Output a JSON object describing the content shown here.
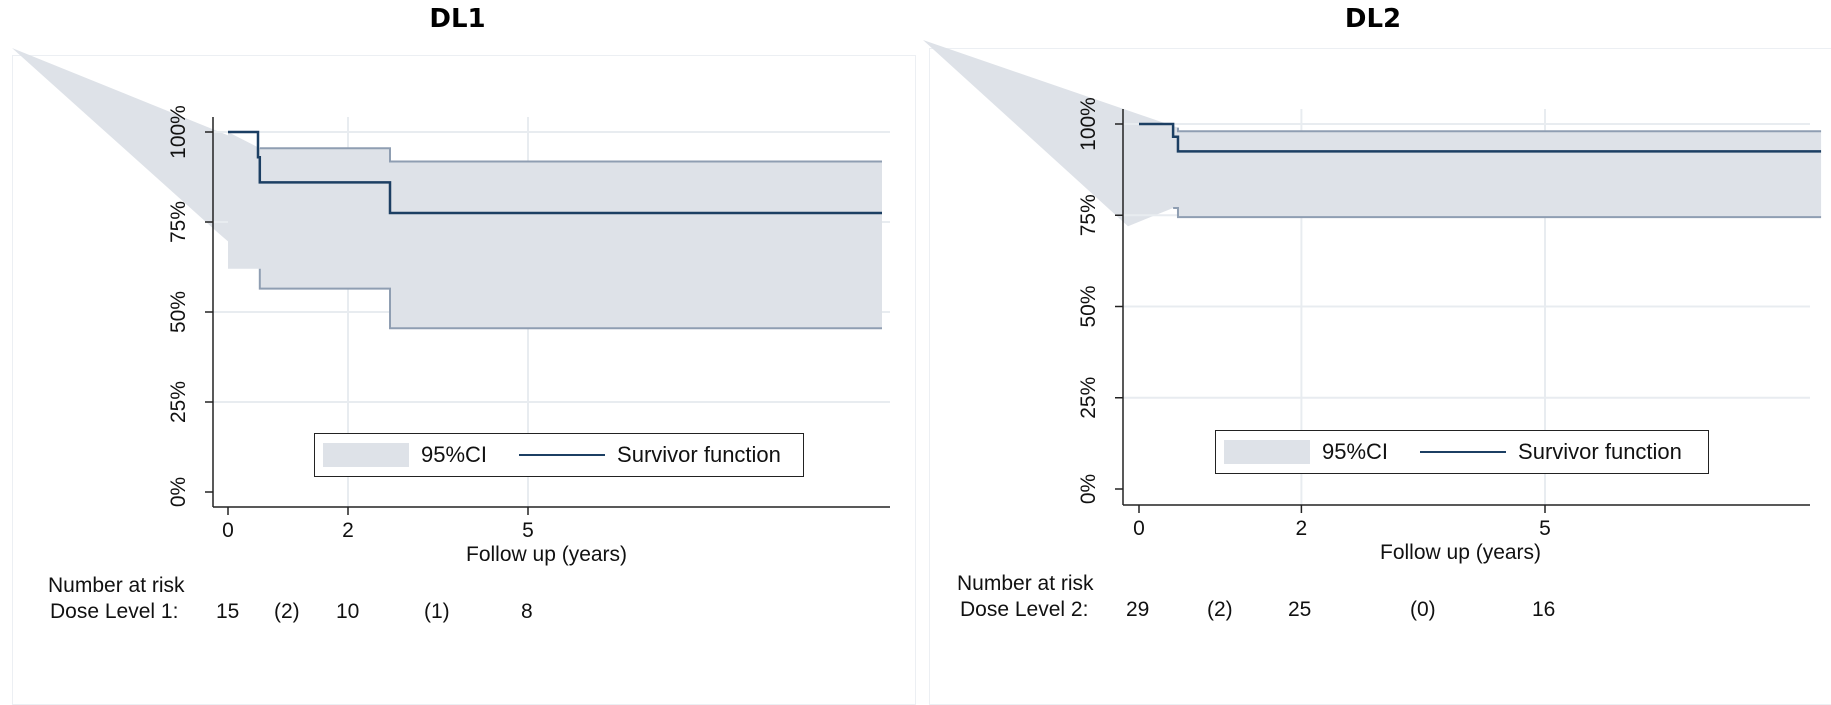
{
  "chart_data": [
    {
      "type": "line",
      "title": "DL1",
      "xlabel": "Follow up (years)",
      "ylabel": "",
      "x_ticks": [
        "0",
        "2",
        "5"
      ],
      "y_ticks": [
        "0%",
        "25%",
        "50%",
        "75%",
        "100%"
      ],
      "xlim": [
        0,
        10.9
      ],
      "ylim": [
        0,
        1
      ],
      "grid": true,
      "legend_position": "bottom-center",
      "legend": [
        "95%CI",
        "Survivor function"
      ],
      "colors": {
        "survivor": "#1c3f63",
        "ci_fill": "#dee2e8",
        "ci_edge": "#8f9eb2",
        "grid": "#e8ecf0"
      },
      "series": [
        {
          "name": "Survivor function",
          "x": [
            0,
            0.5,
            0.5,
            0.53,
            0.53,
            2.7,
            2.7,
            10.9
          ],
          "y": [
            1.0,
            1.0,
            0.93,
            0.93,
            0.86,
            0.86,
            0.775,
            0.775
          ]
        },
        {
          "name": "95%CI upper",
          "x": [
            0.53,
            2.7,
            2.7,
            10.9
          ],
          "y": [
            0.955,
            0.955,
            0.918,
            0.918
          ]
        },
        {
          "name": "95%CI lower",
          "x": [
            0.53,
            0.53,
            2.7,
            2.7,
            10.9
          ],
          "y": [
            0.62,
            0.565,
            0.565,
            0.455,
            0.455
          ]
        }
      ],
      "risk_table": {
        "heading": "Number at risk",
        "group_label": "Dose Level 1:",
        "values": [
          "15",
          "(2)",
          "10",
          "(1)",
          "8"
        ]
      }
    },
    {
      "type": "line",
      "title": "DL2",
      "xlabel": "Follow up (years)",
      "ylabel": "",
      "x_ticks": [
        "0",
        "2",
        "5"
      ],
      "y_ticks": [
        "0%",
        "25%",
        "50%",
        "75%",
        "100%"
      ],
      "xlim": [
        0,
        8.4
      ],
      "ylim": [
        0,
        1
      ],
      "grid": true,
      "legend_position": "bottom-center",
      "legend": [
        "95%CI",
        "Survivor function"
      ],
      "colors": {
        "survivor": "#1c3f63",
        "ci_fill": "#dee2e8",
        "ci_edge": "#8f9eb2",
        "grid": "#e8ecf0"
      },
      "series": [
        {
          "name": "Survivor function",
          "x": [
            0,
            0.42,
            0.42,
            0.48,
            0.48,
            8.4
          ],
          "y": [
            1.0,
            1.0,
            0.965,
            0.965,
            0.925,
            0.925
          ]
        },
        {
          "name": "95%CI upper",
          "x": [
            0.48,
            0.48,
            8.4
          ],
          "y": [
            0.99,
            0.98,
            0.98
          ]
        },
        {
          "name": "95%CI lower",
          "x": [
            0.42,
            0.42,
            0.48,
            0.48,
            8.4
          ],
          "y": [
            0.77,
            0.77,
            0.77,
            0.745,
            0.745
          ]
        }
      ],
      "risk_table": {
        "heading": "Number at risk",
        "group_label": "Dose Level 2:",
        "values": [
          "29",
          "(2)",
          "25",
          "(0)",
          "16"
        ]
      }
    }
  ]
}
